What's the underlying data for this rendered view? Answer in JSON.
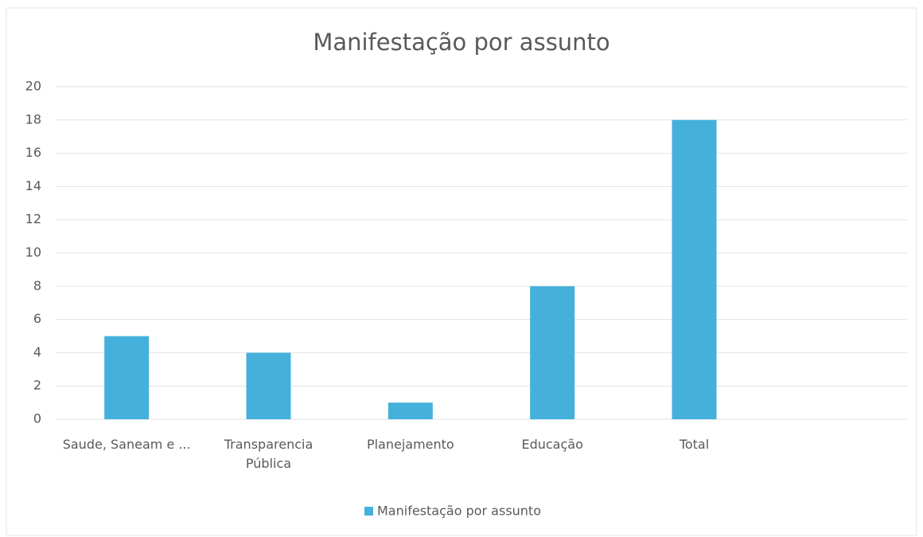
{
  "chart_data": {
    "type": "bar",
    "title": "Manifestação por assunto",
    "categories": [
      "Saude, Saneam e ...",
      "Transparencia Pública",
      "Planejamento",
      "Educação",
      "Total",
      null
    ],
    "series": [
      {
        "name": "Manifestação por assunto",
        "color": "#45b0dc",
        "values": [
          5,
          4,
          1,
          8,
          18,
          null
        ]
      }
    ],
    "ylim": [
      0,
      20
    ],
    "yticks": [
      0,
      2,
      4,
      6,
      8,
      10,
      12,
      14,
      16,
      18,
      20
    ],
    "grid": true,
    "legend": "bottom"
  }
}
